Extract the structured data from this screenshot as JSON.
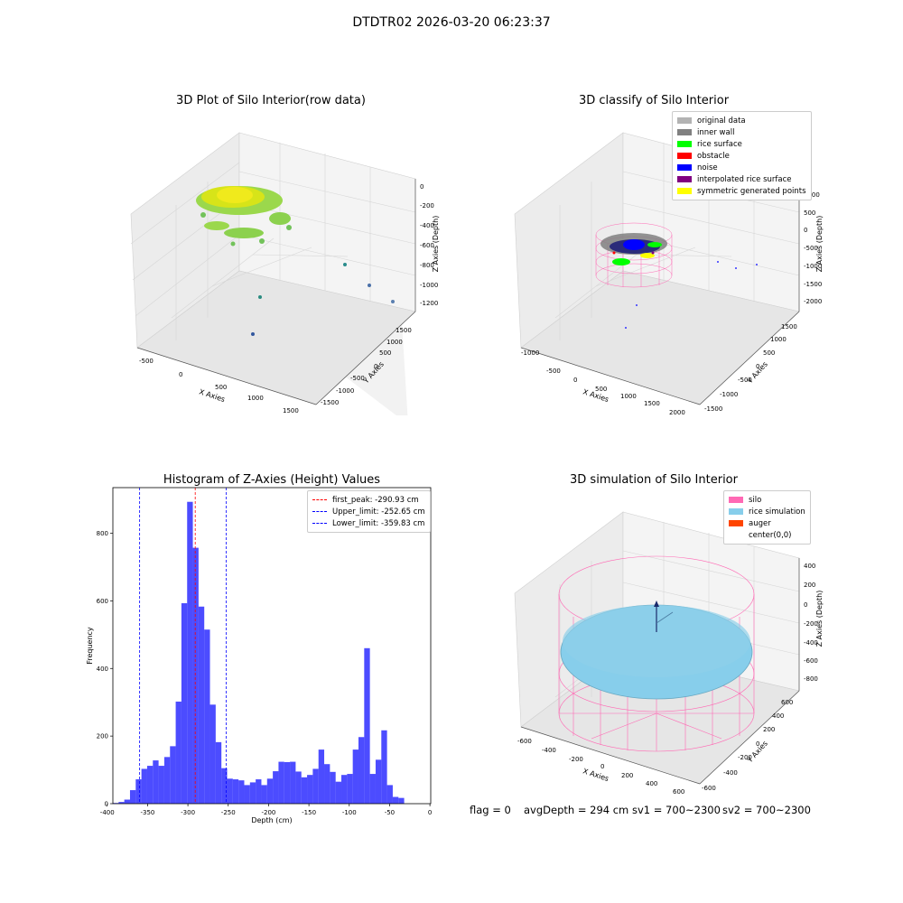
{
  "suptitle": "DTDTR02 2026-03-20 06:23:37",
  "panels": {
    "raw": {
      "title": "3D Plot of Silo Interior(row data)",
      "xlabel": "X Axies",
      "ylabel": "Y Axies",
      "zlabel": "Z Axies (Depth)",
      "xticks": [
        "-500",
        "0",
        "500",
        "1000",
        "1500"
      ],
      "yticks": [
        "-1500",
        "-1000",
        "-500",
        "0",
        "500",
        "1000",
        "1500"
      ],
      "zticks": [
        "0",
        "-200",
        "-400",
        "-600",
        "-800",
        "-1000",
        "-1200"
      ]
    },
    "classify": {
      "title": "3D classify of Silo Interior",
      "xlabel": "X Axies",
      "ylabel": "Y Axies",
      "zlabel": "Z Axies (Depth)",
      "xticks": [
        "-1000",
        "-500",
        "0",
        "500",
        "1000",
        "1500",
        "2000"
      ],
      "yticks": [
        "-1500",
        "-1000",
        "-500",
        "0",
        "500",
        "1000",
        "1500"
      ],
      "zticks": [
        "1000",
        "500",
        "0",
        "-500",
        "-1000",
        "-1500",
        "-2000"
      ],
      "legend": [
        {
          "label": "original data",
          "color": "#b3b3b3"
        },
        {
          "label": "inner wall",
          "color": "#808080"
        },
        {
          "label": "rice surface",
          "color": "#00ff00"
        },
        {
          "label": "obstacle",
          "color": "#ff0000"
        },
        {
          "label": "noise",
          "color": "#0000ff"
        },
        {
          "label": "interpolated rice surface",
          "color": "#800080"
        },
        {
          "label": "symmetric generated points",
          "color": "#ffff00"
        }
      ]
    },
    "simulation": {
      "title": "3D simulation of Silo Interior",
      "xlabel": "X Axies",
      "ylabel": "Y Axies",
      "zlabel": "Z Axies (Depth)",
      "xticks": [
        "-600",
        "-400",
        "-200",
        "0",
        "200",
        "400",
        "600"
      ],
      "yticks": [
        "-600",
        "-400",
        "-200",
        "0",
        "200",
        "400",
        "600"
      ],
      "zticks": [
        "400",
        "200",
        "0",
        "-200",
        "-400",
        "-600",
        "-800"
      ],
      "legend": [
        {
          "label": "silo",
          "color": "#ff69b4"
        },
        {
          "label": "rice simulation",
          "color": "#87ceeb"
        },
        {
          "label": "auger",
          "color": "#ff4500"
        },
        {
          "label": "center(0,0)",
          "color": "#ffffff"
        }
      ]
    }
  },
  "chart_data": {
    "type": "bar",
    "title": "Histogram of Z-Axies (Height) Values",
    "xlabel": "Depth (cm)",
    "ylabel": "Frequency",
    "xlim": [
      -393,
      1
    ],
    "ylim": [
      0,
      935
    ],
    "xticks": [
      -400,
      -350,
      -300,
      -250,
      -200,
      -150,
      -100,
      -50,
      0
    ],
    "yticks": [
      0,
      200,
      400,
      600,
      800
    ],
    "bin_start": -393,
    "bin_width": 7.08,
    "values": [
      2,
      5,
      12,
      40,
      72,
      103,
      112,
      128,
      112,
      138,
      170,
      302,
      593,
      893,
      757,
      583,
      515,
      293,
      182,
      105,
      74,
      72,
      69,
      55,
      63,
      72,
      55,
      74,
      96,
      124,
      123,
      124,
      95,
      78,
      85,
      103,
      160,
      117,
      94,
      65,
      85,
      88,
      160,
      197,
      460,
      88,
      130,
      217,
      55,
      20,
      17
    ],
    "color": "#0000ff",
    "lines": [
      {
        "label": "first_peak: -290.93 cm",
        "x": -290.93,
        "color": "#ff0000"
      },
      {
        "label": "Upper_limit: -252.65 cm",
        "x": -252.65,
        "color": "#0000ff"
      },
      {
        "label": "Lower_limit: -359.83 cm",
        "x": -359.83,
        "color": "#0000ff"
      }
    ],
    "legend_position": "top-right"
  },
  "footer": {
    "flag": "flag = 0",
    "avgdepth": "avgDepth = 294 cm",
    "sv1": "sv1 = 700~2300",
    "sv2": "sv2 = 700~2300"
  }
}
